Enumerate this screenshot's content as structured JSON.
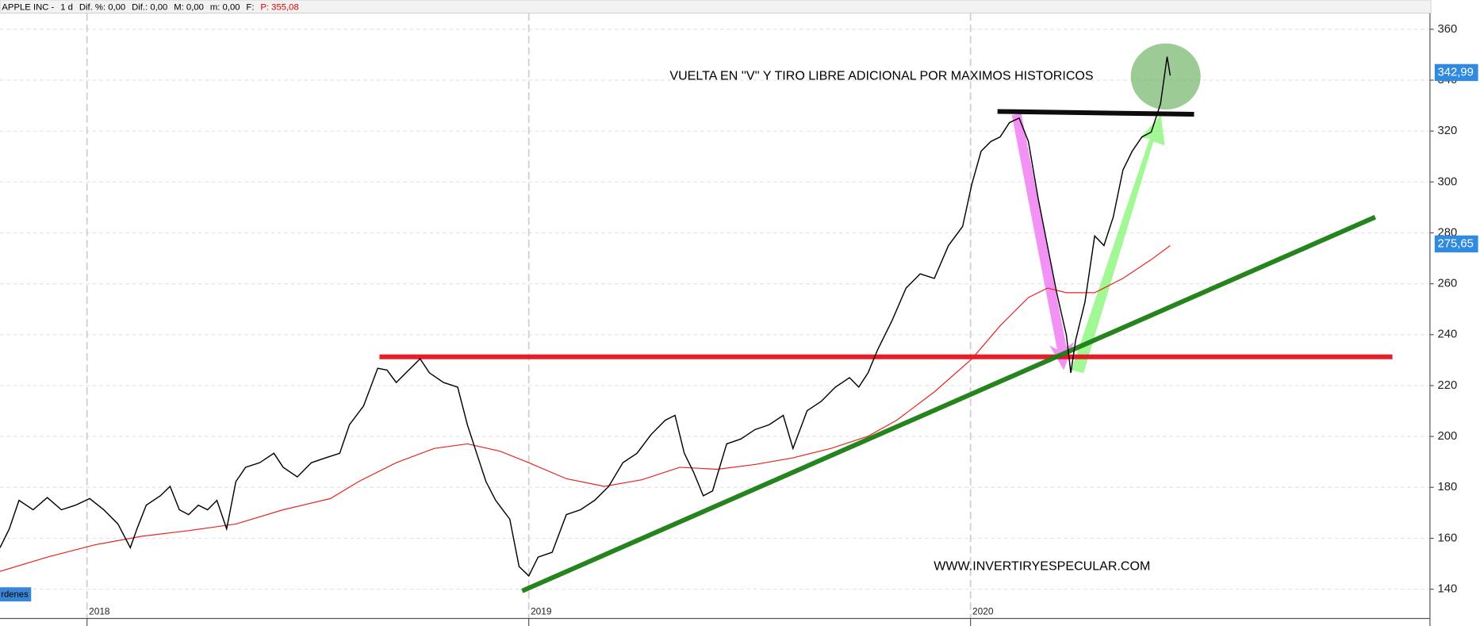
{
  "chart_data": {
    "type": "line",
    "header": {
      "symbol": "APPLE INC -",
      "period": "1 d",
      "fields": [
        "Dif. %: 0,00",
        "Dif.: 0,00",
        "M: 0,00",
        "m: 0,00",
        "F:"
      ],
      "price": "P: 355,08"
    },
    "annotations": [
      "VUELTA EN ''V'' Y TIRO LIBRE ADICIONAL POR MAXIMOS HISTORICOS",
      "WWW.INVERTIRYESPECULAR.COM"
    ],
    "orders_tab": "rdenes",
    "xlim": [
      2017.803,
      2021.04
    ],
    "xticks": [
      2018,
      2019,
      2020
    ],
    "ylim": [
      128.5,
      366.3
    ],
    "yticks": [
      140,
      160,
      180,
      200,
      220,
      240,
      260,
      280,
      300,
      320,
      340,
      360
    ],
    "grid": true,
    "price_markers": [
      {
        "value": 342.99,
        "label": "342,99"
      },
      {
        "value": 275.65,
        "label": "275,65"
      }
    ],
    "series": [
      {
        "color": "#000000",
        "x": [
          2017.803,
          2017.824,
          2017.846,
          2017.878,
          2017.91,
          2017.942,
          2017.974,
          2018.006,
          2018.038,
          2018.07,
          2018.098,
          2018.113,
          2018.134,
          2018.166,
          2018.188,
          2018.209,
          2018.23,
          2018.252,
          2018.273,
          2018.294,
          2018.316,
          2018.337,
          2018.359,
          2018.391,
          2018.423,
          2018.444,
          2018.476,
          2018.508,
          2018.54,
          2018.572,
          2018.594,
          2018.626,
          2018.658,
          2018.679,
          2018.7,
          2018.722,
          2018.754,
          2018.775,
          2018.807,
          2018.839,
          2018.861,
          2018.882,
          2018.903,
          2018.925,
          2018.957,
          2018.978,
          2019.0,
          2019.021,
          2019.053,
          2019.085,
          2019.117,
          2019.149,
          2019.181,
          2019.213,
          2019.245,
          2019.277,
          2019.309,
          2019.331,
          2019.352,
          2019.373,
          2019.395,
          2019.416,
          2019.448,
          2019.48,
          2019.512,
          2019.544,
          2019.576,
          2019.598,
          2019.63,
          2019.662,
          2019.694,
          2019.726,
          2019.747,
          2019.768,
          2019.79,
          2019.822,
          2019.854,
          2019.886,
          2019.918,
          2019.95,
          2019.982,
          2020.003,
          2020.024,
          2020.046,
          2020.067,
          2020.088,
          2020.11,
          2020.131,
          2020.153,
          2020.174,
          2020.195,
          2020.217,
          2020.227,
          2020.238,
          2020.259,
          2020.281,
          2020.302,
          2020.323,
          2020.345,
          2020.366,
          2020.388,
          2020.409,
          2020.43,
          2020.445,
          2020.452
        ],
        "values": [
          156.3,
          163.7,
          174.9,
          171.2,
          176.0,
          171.2,
          173.0,
          175.6,
          171.2,
          165.6,
          156.3,
          163.7,
          173.0,
          176.7,
          180.4,
          171.2,
          169.3,
          173.0,
          171.2,
          174.9,
          163.7,
          182.3,
          187.9,
          189.7,
          193.4,
          187.9,
          184.1,
          189.7,
          191.6,
          193.4,
          204.6,
          212.0,
          226.8,
          226.1,
          221.2,
          225.0,
          230.5,
          225.0,
          221.2,
          219.4,
          204.6,
          193.4,
          182.3,
          174.9,
          167.5,
          148.9,
          145.2,
          152.6,
          154.5,
          169.3,
          171.2,
          174.9,
          180.4,
          189.7,
          193.4,
          200.8,
          206.4,
          208.3,
          193.4,
          186.0,
          176.7,
          178.6,
          197.1,
          199.0,
          202.7,
          204.6,
          208.3,
          195.3,
          210.1,
          213.8,
          219.4,
          223.1,
          219.4,
          225.0,
          234.2,
          245.4,
          258.3,
          263.9,
          262.1,
          275.0,
          282.5,
          299.2,
          312.1,
          315.9,
          317.7,
          323.3,
          325.1,
          315.9,
          293.6,
          275.0,
          256.5,
          239.8,
          225.0,
          237.9,
          252.8,
          278.8,
          275.0,
          286.2,
          304.7,
          312.1,
          317.7,
          319.6,
          330.7,
          349.2,
          341.8
        ]
      },
      {
        "color": "#e8231f",
        "x": [
          2017.803,
          2017.91,
          2018.017,
          2018.124,
          2018.23,
          2018.337,
          2018.444,
          2018.551,
          2018.615,
          2018.7,
          2018.786,
          2018.861,
          2018.935,
          2019.0,
          2019.085,
          2019.171,
          2019.256,
          2019.342,
          2019.427,
          2019.512,
          2019.598,
          2019.684,
          2019.768,
          2019.833,
          2019.918,
          2020.003,
          2020.067,
          2020.131,
          2020.174,
          2020.217,
          2020.281,
          2020.345,
          2020.409,
          2020.452
        ],
        "values": [
          147.0,
          152.6,
          157.4,
          160.8,
          163.0,
          165.6,
          171.2,
          175.6,
          182.3,
          189.7,
          195.3,
          197.1,
          194.2,
          189.7,
          183.4,
          180.4,
          183.0,
          187.9,
          187.1,
          189.0,
          191.6,
          195.3,
          200.1,
          206.4,
          217.5,
          230.5,
          243.5,
          254.6,
          258.3,
          256.5,
          256.5,
          262.1,
          269.5,
          275.0
        ]
      }
    ],
    "trend_lines": [
      {
        "color": "#e8101c",
        "x": [
          2018.662,
          2020.955
        ],
        "values": [
          231.3,
          231.3
        ]
      },
      {
        "color": "#1a7d12",
        "x": [
          2018.985,
          2020.916
        ],
        "values": [
          139.3,
          286.2
        ]
      },
      {
        "color": "#000000",
        "x": [
          2020.061,
          2020.506
        ],
        "values": [
          327.7,
          326.6
        ]
      }
    ]
  }
}
